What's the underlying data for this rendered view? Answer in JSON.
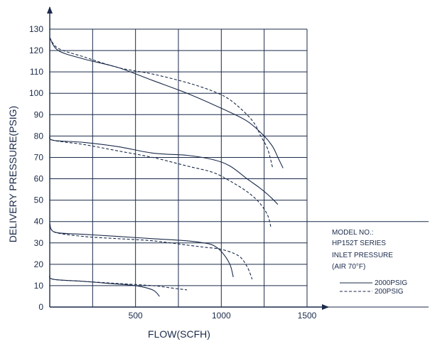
{
  "chart_data": {
    "type": "line",
    "xlabel": "FLOW(SCFH)",
    "ylabel": "DELIVERY PRESSURE(PSIG)",
    "xlim": [
      0,
      1500
    ],
    "ylim": [
      0,
      130
    ],
    "x_ticks": [
      {
        "value": 500,
        "label": "500"
      },
      {
        "value": 1000,
        "label": "1000"
      },
      {
        "value": 1500,
        "label": "1500"
      }
    ],
    "x_gridlines": [
      250,
      500,
      750,
      1000,
      1250
    ],
    "y_ticks": [
      {
        "value": 0,
        "label": "0"
      },
      {
        "value": 10,
        "label": "10"
      },
      {
        "value": 20,
        "label": "20"
      },
      {
        "value": 30,
        "label": "30"
      },
      {
        "value": 40,
        "label": "40"
      },
      {
        "value": 50,
        "label": "50"
      },
      {
        "value": 60,
        "label": "60"
      },
      {
        "value": 70,
        "label": "70"
      },
      {
        "value": 80,
        "label": "80"
      },
      {
        "value": 90,
        "label": "90"
      },
      {
        "value": 100,
        "label": "100"
      },
      {
        "value": 110,
        "label": "110"
      },
      {
        "value": 120,
        "label": "120"
      },
      {
        "value": 130,
        "label": "130"
      }
    ],
    "grid": true,
    "legend": {
      "position": "right",
      "lines": [
        "MODEL NO.:",
        "HP152T SERIES",
        "INLET PRESSURE",
        "(AIR 70°F)"
      ],
      "entries": [
        {
          "label": "2000PSIG",
          "style": "solid"
        },
        {
          "label": "200PSIG",
          "style": "dashed"
        }
      ]
    },
    "series": [
      {
        "name": "2000PSIG",
        "style": "solid",
        "points": [
          [
            0,
            126
          ],
          [
            50,
            120
          ],
          [
            200,
            116
          ],
          [
            400,
            112
          ],
          [
            600,
            106
          ],
          [
            800,
            100
          ],
          [
            1000,
            93
          ],
          [
            1150,
            87
          ],
          [
            1250,
            80
          ],
          [
            1300,
            75
          ],
          [
            1330,
            70
          ],
          [
            1360,
            65
          ]
        ]
      },
      {
        "name": "200PSIG",
        "style": "dashed",
        "points": [
          [
            0,
            126
          ],
          [
            50,
            121
          ],
          [
            200,
            117
          ],
          [
            400,
            112
          ],
          [
            600,
            109
          ],
          [
            800,
            105
          ],
          [
            950,
            101
          ],
          [
            1050,
            97
          ],
          [
            1150,
            90
          ],
          [
            1200,
            85
          ],
          [
            1230,
            80
          ],
          [
            1270,
            74
          ],
          [
            1300,
            65
          ]
        ]
      },
      {
        "name": "2000PSIG",
        "style": "solid",
        "points": [
          [
            0,
            80
          ],
          [
            20,
            78
          ],
          [
            200,
            77
          ],
          [
            400,
            75
          ],
          [
            600,
            72
          ],
          [
            800,
            71
          ],
          [
            950,
            69
          ],
          [
            1050,
            66
          ],
          [
            1150,
            60
          ],
          [
            1220,
            56
          ],
          [
            1280,
            52
          ],
          [
            1330,
            48
          ]
        ]
      },
      {
        "name": "200PSIG",
        "style": "dashed",
        "points": [
          [
            0,
            80
          ],
          [
            20,
            78
          ],
          [
            200,
            76
          ],
          [
            400,
            73
          ],
          [
            600,
            70
          ],
          [
            800,
            66
          ],
          [
            950,
            63
          ],
          [
            1050,
            59
          ],
          [
            1150,
            54
          ],
          [
            1220,
            49
          ],
          [
            1270,
            43
          ],
          [
            1290,
            37
          ]
        ]
      },
      {
        "name": "2000PSIG",
        "style": "solid",
        "points": [
          [
            0,
            39
          ],
          [
            30,
            35
          ],
          [
            200,
            34
          ],
          [
            400,
            33
          ],
          [
            600,
            32
          ],
          [
            800,
            31
          ],
          [
            900,
            30
          ],
          [
            950,
            29
          ],
          [
            1000,
            26
          ],
          [
            1050,
            20
          ],
          [
            1070,
            14
          ]
        ]
      },
      {
        "name": "200PSIG",
        "style": "dashed",
        "points": [
          [
            0,
            39
          ],
          [
            30,
            35
          ],
          [
            200,
            33
          ],
          [
            400,
            32
          ],
          [
            600,
            31
          ],
          [
            800,
            29
          ],
          [
            900,
            28
          ],
          [
            1000,
            27
          ],
          [
            1100,
            24
          ],
          [
            1150,
            19
          ],
          [
            1180,
            13
          ]
        ]
      },
      {
        "name": "2000PSIG",
        "style": "solid",
        "points": [
          [
            0,
            15
          ],
          [
            20,
            13
          ],
          [
            200,
            12
          ],
          [
            350,
            11
          ],
          [
            500,
            10
          ],
          [
            600,
            8
          ],
          [
            640,
            5
          ]
        ]
      },
      {
        "name": "200PSIG",
        "style": "dashed",
        "points": [
          [
            0,
            15
          ],
          [
            20,
            13
          ],
          [
            200,
            12
          ],
          [
            400,
            11
          ],
          [
            600,
            10
          ],
          [
            700,
            9
          ],
          [
            800,
            8
          ]
        ]
      }
    ]
  },
  "colors": {
    "ink": "#1a2a4a",
    "background": "#ffffff"
  }
}
